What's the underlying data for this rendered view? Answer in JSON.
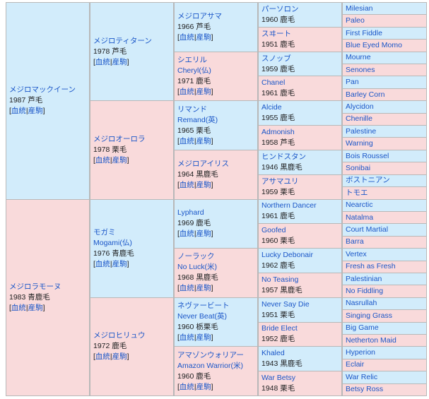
{
  "gen1": [
    {
      "name": "メジロマックイーン",
      "year_color": "1987 芦毛",
      "links": [
        "血統",
        "産駒"
      ],
      "sex": "m"
    },
    {
      "name": "メジロラモーヌ",
      "year_color": "1983 青鹿毛",
      "links": [
        "血統",
        "産駒"
      ],
      "sex": "f"
    }
  ],
  "gen2": [
    {
      "name": "メジロティターン",
      "year_color": "1978 芦毛",
      "links": [
        "血統",
        "産駒"
      ],
      "sex": "m"
    },
    {
      "name": "メジロオーロラ",
      "year_color": "1978 栗毛",
      "links": [
        "血統",
        "産駒"
      ],
      "sex": "f"
    },
    {
      "name": "モガミ",
      "alt": "Mogami(仏)",
      "year_color": "1976 青鹿毛",
      "links": [
        "血統",
        "産駒"
      ],
      "sex": "m"
    },
    {
      "name": "メジロヒリュウ",
      "year_color": "1972 鹿毛",
      "links": [
        "血統",
        "産駒"
      ],
      "sex": "f"
    }
  ],
  "gen3": [
    {
      "name": "メジロアサマ",
      "year_color": "1966 芦毛",
      "links": [
        "血統",
        "産駒"
      ],
      "sex": "m"
    },
    {
      "name": "シエリル",
      "alt": "Cheryl(仏)",
      "year_color": "1971 鹿毛",
      "links": [
        "血統",
        "産駒"
      ],
      "sex": "f"
    },
    {
      "name": "リマンド",
      "alt": "Remand(英)",
      "year_color": "1965 栗毛",
      "links": [
        "血統",
        "産駒"
      ],
      "sex": "m"
    },
    {
      "name": "メジロアイリス",
      "year_color": "1964 黒鹿毛",
      "links": [
        "血統",
        "産駒"
      ],
      "sex": "f"
    },
    {
      "name": "Lyphard",
      "year_color": "1969 鹿毛",
      "links": [
        "血統",
        "産駒"
      ],
      "sex": "m"
    },
    {
      "name": "ノーラック",
      "alt": "No Luck(米)",
      "year_color": "1968 黒鹿毛",
      "links": [
        "血統",
        "産駒"
      ],
      "sex": "f"
    },
    {
      "name": "ネヴァービート",
      "alt": "Never Beat(英)",
      "year_color": "1960 栃栗毛",
      "links": [
        "血統",
        "産駒"
      ],
      "sex": "m"
    },
    {
      "name": "アマゾンウォリアー",
      "alt": "Amazon Warrior(米)",
      "year_color": "1960 鹿毛",
      "links": [
        "血統",
        "産駒"
      ],
      "sex": "f"
    }
  ],
  "gen4": [
    {
      "name": "パーソロン",
      "year_color": "1960 鹿毛",
      "sex": "m"
    },
    {
      "name": "スヰート",
      "year_color": "1951 鹿毛",
      "sex": "f"
    },
    {
      "name": "スノッブ",
      "year_color": "1959 鹿毛",
      "sex": "m"
    },
    {
      "name": "Chanel",
      "year_color": "1961 鹿毛",
      "sex": "f"
    },
    {
      "name": "Alcide",
      "year_color": "1955 鹿毛",
      "sex": "m"
    },
    {
      "name": "Admonish",
      "year_color": "1958 芦毛",
      "sex": "f"
    },
    {
      "name": "ヒンドスタン",
      "year_color": "1946 黒鹿毛",
      "sex": "m"
    },
    {
      "name": "アサマユリ",
      "year_color": "1959 栗毛",
      "sex": "f"
    },
    {
      "name": "Northern Dancer",
      "year_color": "1961 鹿毛",
      "sex": "m"
    },
    {
      "name": "Goofed",
      "year_color": "1960 栗毛",
      "sex": "f"
    },
    {
      "name": "Lucky Debonair",
      "year_color": "1962 鹿毛",
      "sex": "m"
    },
    {
      "name": "No Teasing",
      "year_color": "1957 黒鹿毛",
      "sex": "f"
    },
    {
      "name": "Never Say Die",
      "year_color": "1951 栗毛",
      "sex": "m"
    },
    {
      "name": "Bride Elect",
      "year_color": "1952 鹿毛",
      "sex": "f"
    },
    {
      "name": "Khaled",
      "year_color": "1943 黒鹿毛",
      "sex": "m"
    },
    {
      "name": "War Betsy",
      "year_color": "1948 栗毛",
      "sex": "f"
    }
  ],
  "gen5": [
    {
      "name": "Milesian",
      "sex": "m"
    },
    {
      "name": "Paleo",
      "sex": "f"
    },
    {
      "name": "First Fiddle",
      "sex": "m"
    },
    {
      "name": "Blue Eyed Momo",
      "sex": "f"
    },
    {
      "name": "Mourne",
      "sex": "m"
    },
    {
      "name": "Senones",
      "sex": "f"
    },
    {
      "name": "Pan",
      "sex": "m"
    },
    {
      "name": "Barley Corn",
      "sex": "f"
    },
    {
      "name": "Alycidon",
      "sex": "m"
    },
    {
      "name": "Chenille",
      "sex": "f"
    },
    {
      "name": "Palestine",
      "sex": "m"
    },
    {
      "name": "Warning",
      "sex": "f"
    },
    {
      "name": "Bois Roussel",
      "sex": "m"
    },
    {
      "name": "Sonibai",
      "sex": "f"
    },
    {
      "name": "ボストニアン",
      "sex": "m"
    },
    {
      "name": "トモエ",
      "sex": "f"
    },
    {
      "name": "Nearctic",
      "sex": "m"
    },
    {
      "name": "Natalma",
      "sex": "f"
    },
    {
      "name": "Court Martial",
      "sex": "m"
    },
    {
      "name": "Barra",
      "sex": "f"
    },
    {
      "name": "Vertex",
      "sex": "m"
    },
    {
      "name": "Fresh as Fresh",
      "sex": "f"
    },
    {
      "name": "Palestinian",
      "sex": "m"
    },
    {
      "name": "No Fiddling",
      "sex": "f"
    },
    {
      "name": "Nasrullah",
      "sex": "m"
    },
    {
      "name": "Singing Grass",
      "sex": "f"
    },
    {
      "name": "Big Game",
      "sex": "m"
    },
    {
      "name": "Netherton Maid",
      "sex": "f"
    },
    {
      "name": "Hyperion",
      "sex": "m"
    },
    {
      "name": "Eclair",
      "sex": "f"
    },
    {
      "name": "War Relic",
      "sex": "m"
    },
    {
      "name": "Betsy Ross",
      "sex": "f"
    }
  ]
}
